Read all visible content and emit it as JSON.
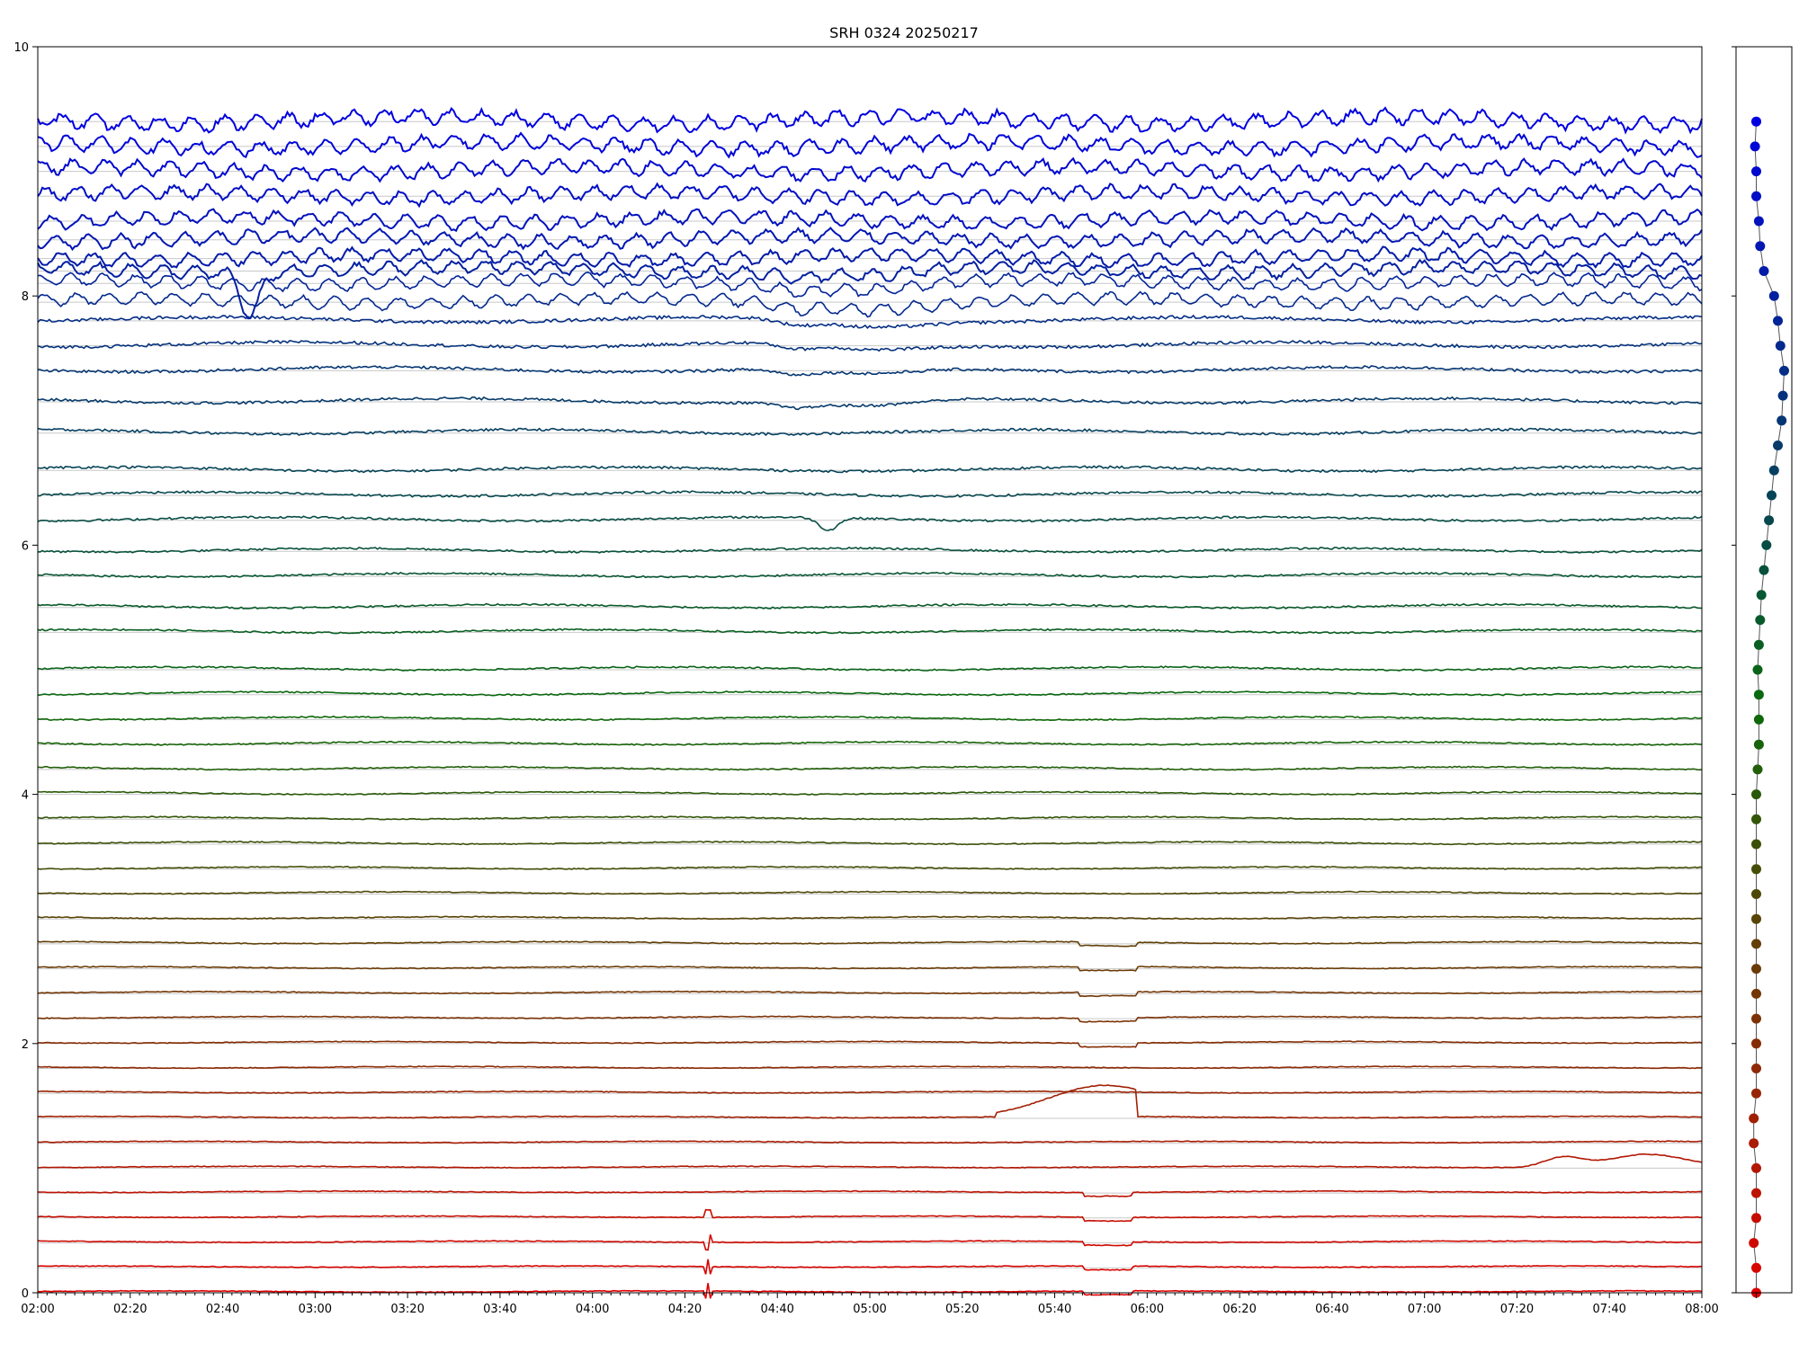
{
  "chart_data": [
    {
      "type": "line",
      "title": "SRH 0324 20250217",
      "xlabel": "",
      "ylabel": "",
      "xlim": [
        0,
        360
      ],
      "ylim": [
        0,
        10
      ],
      "x_tick_labels": [
        "02:00",
        "02:20",
        "02:40",
        "03:00",
        "03:20",
        "03:40",
        "04:00",
        "04:20",
        "04:40",
        "05:00",
        "05:20",
        "05:40",
        "06:00",
        "06:20",
        "06:40",
        "07:00",
        "07:20",
        "07:40",
        "08:00"
      ],
      "y_tick_labels": [
        "0",
        "2",
        "4",
        "6",
        "8",
        "10"
      ],
      "channel_count": 48,
      "channel_offsets": [
        0.0,
        0.2,
        0.4,
        0.6,
        0.8,
        1.0,
        1.2,
        1.4,
        1.6,
        1.8,
        2.0,
        2.2,
        2.4,
        2.6,
        2.8,
        3.0,
        3.2,
        3.4,
        3.6,
        3.8,
        4.0,
        4.2,
        4.4,
        4.6,
        4.8,
        5.0,
        5.3,
        5.5,
        5.75,
        5.95,
        6.2,
        6.4,
        6.6,
        6.9,
        7.15,
        7.4,
        7.6,
        7.8,
        7.95,
        8.1,
        8.2,
        8.3,
        8.45,
        8.6,
        8.8,
        9.0,
        9.2,
        9.4
      ],
      "color_gradient": {
        "start": "#e00000",
        "mid": "#0a6a0a",
        "end": "#0000e0"
      },
      "grid": true,
      "legend": "none"
    },
    {
      "type": "scatter",
      "title": "",
      "y": [
        0.0,
        0.2,
        0.4,
        0.6,
        0.8,
        1.0,
        1.2,
        1.4,
        1.6,
        1.8,
        2.0,
        2.2,
        2.4,
        2.6,
        2.8,
        3.0,
        3.2,
        3.4,
        3.6,
        3.8,
        4.0,
        4.2,
        4.4,
        4.6,
        4.8,
        5.0,
        5.2,
        5.4,
        5.6,
        5.8,
        6.0,
        6.2,
        6.4,
        6.6,
        6.8,
        7.0,
        7.2,
        7.4,
        7.6,
        7.8,
        8.0,
        8.2,
        8.4,
        8.6,
        8.8,
        9.0,
        9.2,
        9.4
      ],
      "x": [
        0.0,
        0.0,
        -0.1,
        0.0,
        0.0,
        0.0,
        -0.1,
        -0.1,
        0.0,
        0.0,
        0.0,
        0.0,
        0.0,
        0.0,
        0.0,
        0.0,
        0.0,
        0.0,
        0.0,
        0.0,
        0.0,
        0.05,
        0.1,
        0.1,
        0.1,
        0.05,
        0.1,
        0.15,
        0.2,
        0.3,
        0.4,
        0.5,
        0.6,
        0.7,
        0.85,
        1.0,
        1.05,
        1.1,
        0.95,
        0.85,
        0.7,
        0.3,
        0.15,
        0.1,
        0.0,
        0.0,
        -0.05,
        0.0
      ],
      "xlim": [
        -0.8,
        1.4
      ],
      "ylim": [
        0,
        10
      ],
      "connected": true
    }
  ]
}
